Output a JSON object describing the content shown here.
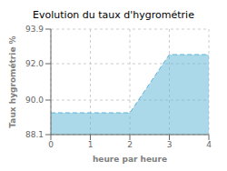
{
  "chart_data": {
    "type": "area",
    "title": "Evolution du taux d'hygrométrie",
    "xlabel": "heure par heure",
    "ylabel": "Taux hygrométrie %",
    "x": [
      0,
      2,
      3,
      4
    ],
    "values": [
      89.3,
      89.3,
      92.5,
      92.5
    ],
    "xlim": [
      0,
      4
    ],
    "ylim": [
      88.1,
      93.9
    ],
    "xticks": [
      0,
      1,
      2,
      3,
      4
    ],
    "yticks": [
      88.1,
      {
        "value": 90.0,
        "label": "90.0"
      },
      {
        "value": 92.0,
        "label": "92.0"
      },
      93.9
    ],
    "color": "#5ab4d6",
    "line_style": "dashed",
    "grid": true
  }
}
